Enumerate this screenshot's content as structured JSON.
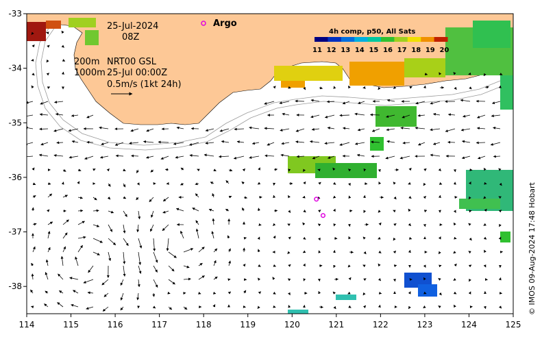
{
  "date": "25-Jul-2024",
  "time": "08Z",
  "legend_lines": {
    "depth_200": "200m",
    "product": "NRT00 GSL",
    "depth_1000": "1000m",
    "valid_time": "25-Jul 00:00Z",
    "scale": "0.5m/s (1kt 24h)"
  },
  "argo_label": "Argo",
  "colorbar": {
    "title": "4h comp, p50, All Sats",
    "ticks": [
      "11",
      "12",
      "13",
      "14",
      "15",
      "16",
      "17",
      "18",
      "19",
      "20"
    ],
    "colors": [
      "#000080",
      "#0030c0",
      "#0070e0",
      "#00b0e0",
      "#00c8a0",
      "#30c030",
      "#a0d020",
      "#f0e000",
      "#f09000",
      "#c02000"
    ]
  },
  "axes": {
    "x_ticks": [
      "114",
      "115",
      "116",
      "117",
      "118",
      "119",
      "120",
      "121",
      "122",
      "123",
      "124",
      "125"
    ],
    "y_ticks": [
      "-33",
      "-34",
      "-35",
      "-36",
      "-37",
      "-38"
    ],
    "xlim": [
      114,
      125
    ],
    "ylim": [
      -38.5,
      -33
    ]
  },
  "argo_floats": [
    {
      "lon": 120.55,
      "lat": -36.4
    },
    {
      "lon": 120.7,
      "lat": -36.7
    }
  ],
  "colors": {
    "land": "#fdc896",
    "argo": "#e000e0"
  },
  "credit": "© IMOS 09-Aug-2024 17:48 Hobart"
}
